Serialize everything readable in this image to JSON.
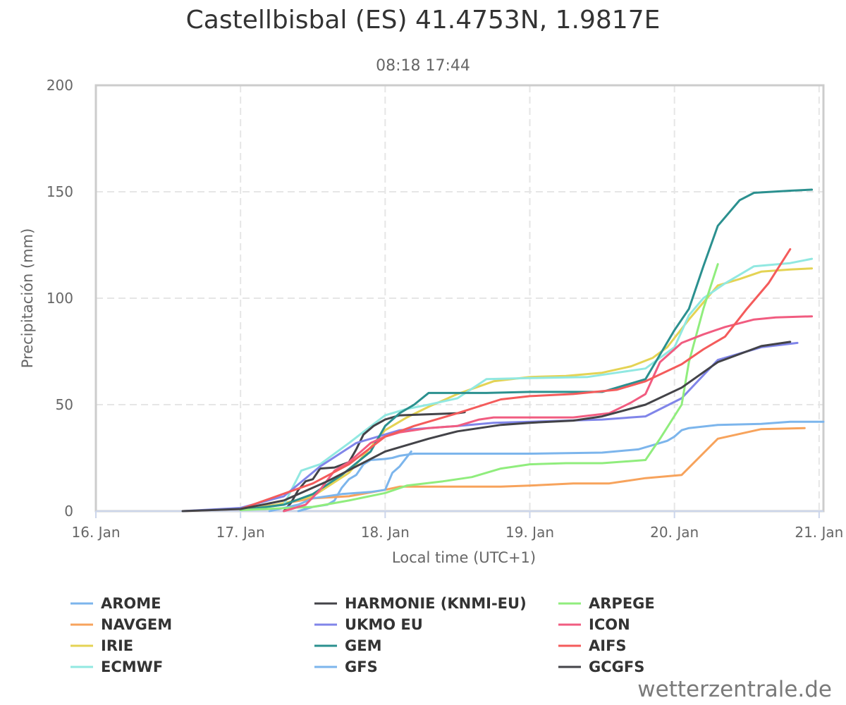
{
  "colors": {
    "AROME": "#7cb5ec",
    "NAVGEM": "#f7a35c",
    "IRIE": "#e4d354",
    "ECMWF": "#91e8e1",
    "HARMONIE (KNMI-EU)": "#434348",
    "UKMO EU": "#8085e9",
    "GEM": "#2b908f",
    "GFS": "#7cb5ec",
    "ARPEGE": "#90ed7d",
    "ICON": "#f15c80",
    "AIFS": "#f45b5b",
    "GCGFS": "#434348"
  },
  "credit": "wetterzentrale.de",
  "chart_data": {
    "type": "line",
    "title": "Castellbisbal (ES) 41.4753N, 1.9817E",
    "subtitle": "08:18 17:44",
    "xlabel": "Local time (UTC+1)",
    "ylabel": "Precipitación (mm)",
    "xlim": [
      16.0,
      21.03
    ],
    "ylim": [
      0,
      200
    ],
    "x_ticks": [
      {
        "value": 16,
        "label": "16. Jan"
      },
      {
        "value": 17,
        "label": "17. Jan"
      },
      {
        "value": 18,
        "label": "18. Jan"
      },
      {
        "value": 19,
        "label": "19. Jan"
      },
      {
        "value": 20,
        "label": "20. Jan"
      },
      {
        "value": 21,
        "label": "21. Jan"
      }
    ],
    "y_ticks": [
      0,
      50,
      100,
      150,
      200
    ],
    "grid": true,
    "legend_position": "bottom",
    "legend": [
      [
        "AROME",
        "NAVGEM",
        "IRIE",
        "ECMWF"
      ],
      [
        "HARMONIE (KNMI-EU)",
        "UKMO EU",
        "GEM",
        "GFS"
      ],
      [
        "ARPEGE",
        "ICON",
        "AIFS",
        "GCGFS"
      ]
    ],
    "series": [
      {
        "name": "AROME",
        "points": [
          [
            17.4,
            0
          ],
          [
            17.5,
            2
          ],
          [
            17.6,
            3
          ],
          [
            17.65,
            5
          ],
          [
            17.7,
            11
          ],
          [
            17.75,
            15
          ],
          [
            17.8,
            17
          ],
          [
            17.85,
            22
          ],
          [
            17.9,
            24
          ],
          [
            18.0,
            24.5
          ],
          [
            18.05,
            25
          ],
          [
            18.1,
            26
          ],
          [
            18.2,
            27
          ],
          [
            18.5,
            27
          ],
          [
            19.0,
            27
          ],
          [
            19.5,
            27.5
          ],
          [
            19.75,
            29
          ],
          [
            19.85,
            31
          ],
          [
            19.95,
            33
          ],
          [
            20.0,
            35
          ],
          [
            20.05,
            38
          ],
          [
            20.1,
            39
          ],
          [
            20.3,
            40.5
          ],
          [
            20.6,
            41
          ],
          [
            20.8,
            42
          ],
          [
            21.03,
            42
          ]
        ]
      },
      {
        "name": "NAVGEM",
        "points": [
          [
            16.6,
            0
          ],
          [
            17.0,
            1
          ],
          [
            17.25,
            3
          ],
          [
            17.5,
            6
          ],
          [
            17.75,
            7
          ],
          [
            18.0,
            10
          ],
          [
            18.1,
            11.5
          ],
          [
            18.5,
            11.5
          ],
          [
            18.8,
            11.5
          ],
          [
            19.0,
            12
          ],
          [
            19.3,
            13
          ],
          [
            19.55,
            13
          ],
          [
            19.8,
            15.5
          ],
          [
            20.05,
            17
          ],
          [
            20.3,
            34
          ],
          [
            20.6,
            38.5
          ],
          [
            20.9,
            39
          ]
        ]
      },
      {
        "name": "IRIE",
        "points": [
          [
            17.0,
            0.5
          ],
          [
            17.25,
            3
          ],
          [
            17.5,
            7
          ],
          [
            17.75,
            18
          ],
          [
            17.9,
            30
          ],
          [
            18.0,
            38
          ],
          [
            18.15,
            44
          ],
          [
            18.3,
            49
          ],
          [
            18.5,
            55
          ],
          [
            18.75,
            61
          ],
          [
            19.0,
            63
          ],
          [
            19.25,
            63.5
          ],
          [
            19.5,
            65
          ],
          [
            19.7,
            68
          ],
          [
            19.85,
            72
          ],
          [
            19.95,
            77
          ],
          [
            20.1,
            90
          ],
          [
            20.2,
            98
          ],
          [
            20.3,
            106
          ],
          [
            20.45,
            109
          ],
          [
            20.6,
            112.5
          ],
          [
            20.8,
            113.5
          ],
          [
            20.95,
            114
          ]
        ]
      },
      {
        "name": "ECMWF",
        "points": [
          [
            17.0,
            0.5
          ],
          [
            17.3,
            3
          ],
          [
            17.42,
            19
          ],
          [
            17.55,
            22
          ],
          [
            17.75,
            32
          ],
          [
            18.0,
            45
          ],
          [
            18.15,
            48
          ],
          [
            18.3,
            50
          ],
          [
            18.5,
            53
          ],
          [
            18.7,
            62
          ],
          [
            19.0,
            62.5
          ],
          [
            19.4,
            63
          ],
          [
            19.6,
            65
          ],
          [
            19.8,
            67
          ],
          [
            20.0,
            77
          ],
          [
            20.1,
            92
          ],
          [
            20.2,
            100
          ],
          [
            20.35,
            107
          ],
          [
            20.55,
            115
          ],
          [
            20.8,
            116.5
          ],
          [
            20.95,
            118.5
          ]
        ]
      },
      {
        "name": "HARMONIE (KNMI-EU)",
        "points": [
          [
            17.3,
            0
          ],
          [
            17.35,
            4
          ],
          [
            17.4,
            10
          ],
          [
            17.45,
            14
          ],
          [
            17.5,
            15
          ],
          [
            17.55,
            20
          ],
          [
            17.65,
            20.5
          ],
          [
            17.75,
            23
          ],
          [
            17.8,
            29
          ],
          [
            17.85,
            36
          ],
          [
            17.92,
            40
          ],
          [
            18.0,
            43
          ],
          [
            18.1,
            45
          ],
          [
            18.5,
            46
          ],
          [
            18.55,
            46.5
          ]
        ]
      },
      {
        "name": "UKMO EU",
        "points": [
          [
            16.6,
            0
          ],
          [
            17.0,
            1.5
          ],
          [
            17.3,
            7
          ],
          [
            17.55,
            21
          ],
          [
            17.8,
            32
          ],
          [
            17.95,
            35
          ],
          [
            18.1,
            38
          ],
          [
            18.5,
            40
          ],
          [
            18.75,
            41.5
          ],
          [
            19.0,
            42
          ],
          [
            19.5,
            43
          ],
          [
            19.8,
            44.5
          ],
          [
            20.05,
            53
          ],
          [
            20.3,
            71
          ],
          [
            20.6,
            77
          ],
          [
            20.85,
            79
          ]
        ]
      },
      {
        "name": "GEM",
        "points": [
          [
            17.0,
            0.5
          ],
          [
            17.3,
            3
          ],
          [
            17.5,
            8
          ],
          [
            17.7,
            17
          ],
          [
            17.9,
            28
          ],
          [
            18.0,
            40
          ],
          [
            18.1,
            46
          ],
          [
            18.2,
            50
          ],
          [
            18.3,
            55.5
          ],
          [
            18.7,
            55.5
          ],
          [
            19.0,
            56
          ],
          [
            19.5,
            56
          ],
          [
            19.8,
            62
          ],
          [
            20.0,
            85
          ],
          [
            20.1,
            95
          ],
          [
            20.2,
            115
          ],
          [
            20.3,
            134
          ],
          [
            20.45,
            146
          ],
          [
            20.55,
            149.5
          ],
          [
            20.8,
            150.5
          ],
          [
            20.95,
            151
          ]
        ]
      },
      {
        "name": "GFS",
        "points": [
          [
            17.2,
            0
          ],
          [
            17.4,
            3
          ],
          [
            17.5,
            6
          ],
          [
            17.7,
            8
          ],
          [
            17.9,
            9
          ],
          [
            18.0,
            10
          ],
          [
            18.05,
            18
          ],
          [
            18.1,
            21
          ],
          [
            18.18,
            28
          ]
        ]
      },
      {
        "name": "ARPEGE",
        "points": [
          [
            17.0,
            0.5
          ],
          [
            17.5,
            2
          ],
          [
            17.75,
            5
          ],
          [
            18.0,
            8.5
          ],
          [
            18.15,
            12
          ],
          [
            18.4,
            14
          ],
          [
            18.6,
            16
          ],
          [
            18.8,
            20
          ],
          [
            19.0,
            22
          ],
          [
            19.25,
            22.5
          ],
          [
            19.5,
            22.5
          ],
          [
            19.8,
            24
          ],
          [
            19.9,
            34
          ],
          [
            20.05,
            50
          ],
          [
            20.1,
            70
          ],
          [
            20.2,
            95
          ],
          [
            20.3,
            116
          ]
        ]
      },
      {
        "name": "ICON",
        "points": [
          [
            17.3,
            0
          ],
          [
            17.45,
            3
          ],
          [
            17.55,
            10
          ],
          [
            17.65,
            19
          ],
          [
            17.75,
            23
          ],
          [
            17.9,
            32
          ],
          [
            18.0,
            35
          ],
          [
            18.1,
            37
          ],
          [
            18.3,
            39
          ],
          [
            18.5,
            40
          ],
          [
            18.65,
            43
          ],
          [
            18.75,
            44
          ],
          [
            19.0,
            44
          ],
          [
            19.3,
            44
          ],
          [
            19.55,
            46
          ],
          [
            19.7,
            51
          ],
          [
            19.8,
            55
          ],
          [
            19.9,
            70
          ],
          [
            20.05,
            79
          ],
          [
            20.2,
            83
          ],
          [
            20.35,
            86.5
          ],
          [
            20.55,
            90
          ],
          [
            20.7,
            91
          ],
          [
            20.95,
            91.5
          ]
        ]
      },
      {
        "name": "AIFS",
        "points": [
          [
            17.0,
            1
          ],
          [
            17.5,
            13
          ],
          [
            17.75,
            22
          ],
          [
            18.0,
            35
          ],
          [
            18.2,
            40
          ],
          [
            18.5,
            46
          ],
          [
            18.8,
            52.5
          ],
          [
            19.0,
            54
          ],
          [
            19.3,
            55
          ],
          [
            19.6,
            57
          ],
          [
            19.8,
            61
          ],
          [
            20.05,
            69
          ],
          [
            20.2,
            76
          ],
          [
            20.35,
            82
          ],
          [
            20.5,
            95
          ],
          [
            20.65,
            107
          ],
          [
            20.8,
            123
          ]
        ]
      },
      {
        "name": "GCGFS",
        "points": [
          [
            16.6,
            0
          ],
          [
            17.0,
            1
          ],
          [
            17.3,
            5
          ],
          [
            17.6,
            14
          ],
          [
            17.8,
            21
          ],
          [
            18.0,
            28
          ],
          [
            18.3,
            34
          ],
          [
            18.5,
            37.5
          ],
          [
            18.8,
            40.5
          ],
          [
            19.0,
            41.5
          ],
          [
            19.3,
            42.5
          ],
          [
            19.5,
            44.5
          ],
          [
            19.8,
            50
          ],
          [
            20.05,
            58
          ],
          [
            20.3,
            70
          ],
          [
            20.6,
            77.5
          ],
          [
            20.8,
            79.5
          ]
        ]
      }
    ]
  }
}
